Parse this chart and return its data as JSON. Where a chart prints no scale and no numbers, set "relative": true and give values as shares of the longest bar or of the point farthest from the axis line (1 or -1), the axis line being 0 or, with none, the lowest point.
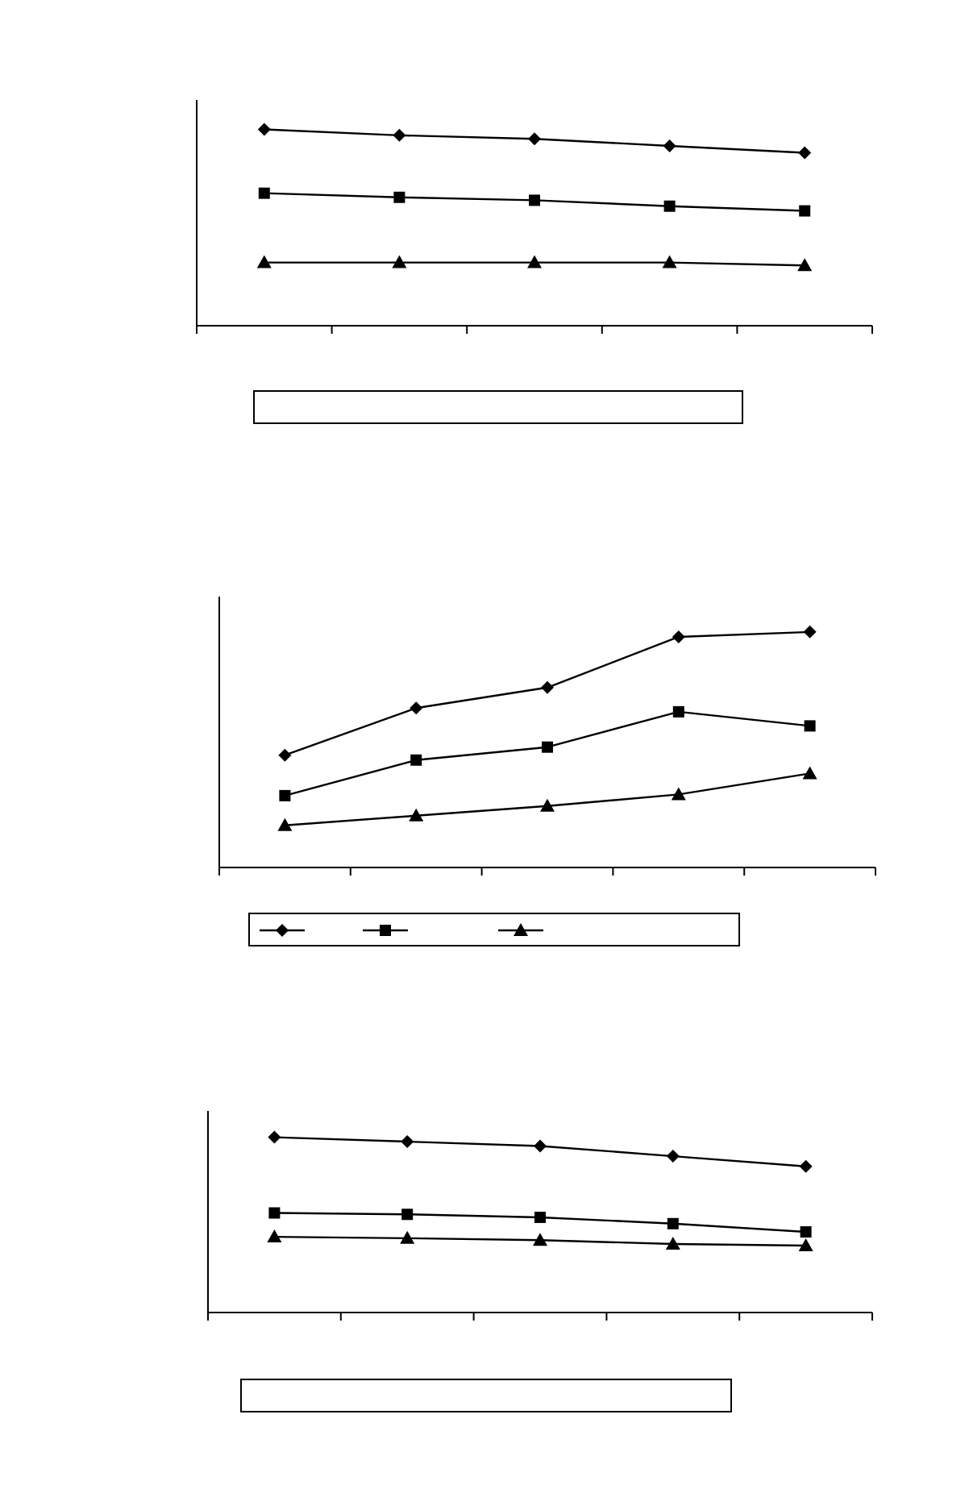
{
  "chart_data": [
    {
      "type": "line",
      "relative": true,
      "categories": [
        null,
        null,
        null,
        null,
        null
      ],
      "legend": false,
      "series": [
        {
          "color": "#000000",
          "marker": "diamond",
          "values": [
            1,
            0.97,
            0.952,
            0.916,
            0.881
          ]
        },
        {
          "color": "#000000",
          "marker": "square",
          "values": [
            0.675,
            0.654,
            0.639,
            0.609,
            0.585
          ]
        },
        {
          "color": "#000000",
          "marker": "triangle",
          "values": [
            0.322,
            0.322,
            0.322,
            0.322,
            0.307
          ]
        }
      ]
    },
    {
      "type": "line",
      "relative": true,
      "categories": [
        null,
        null,
        null,
        null,
        null
      ],
      "legend": false,
      "series": [
        {
          "color": "#000000",
          "marker": "diamond",
          "values": [
            0.477,
            0.677,
            0.764,
            0.979,
            1
          ]
        },
        {
          "color": "#000000",
          "marker": "square",
          "values": [
            0.305,
            0.456,
            0.511,
            0.661,
            0.601
          ]
        },
        {
          "color": "#000000",
          "marker": "triangle",
          "values": [
            0.179,
            0.22,
            0.261,
            0.31,
            0.399
          ]
        }
      ]
    },
    {
      "type": "line",
      "relative": true,
      "categories": [
        null,
        null,
        null,
        null,
        null
      ],
      "legend": false,
      "series": [
        {
          "color": "#000000",
          "marker": "diamond",
          "values": [
            1,
            0.975,
            0.95,
            0.892,
            0.834
          ]
        },
        {
          "color": "#000000",
          "marker": "square",
          "values": [
            0.568,
            0.56,
            0.543,
            0.507,
            0.46
          ]
        },
        {
          "color": "#000000",
          "marker": "triangle",
          "values": [
            0.432,
            0.424,
            0.413,
            0.391,
            0.382
          ]
        }
      ]
    }
  ]
}
